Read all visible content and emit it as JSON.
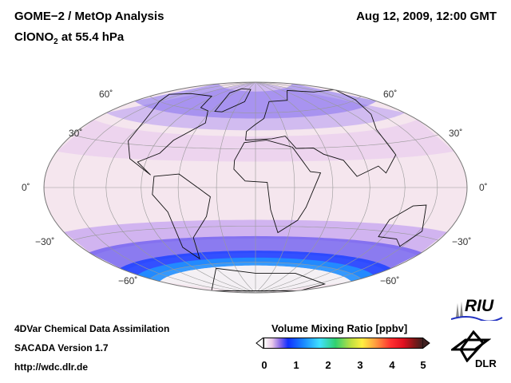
{
  "header": {
    "title": "GOME−2 / MetOp Analysis",
    "species": "ClONO",
    "species_sub": "2",
    "level": " at 55.4 hPa",
    "datetime": "Aug 12, 2009, 12:00 GMT"
  },
  "map": {
    "lat_labels_left": [
      "60˚",
      "30˚",
      "0˚",
      "−30˚",
      "−60˚"
    ],
    "lat_labels_right": [
      "60˚",
      "30˚",
      "0˚",
      "−30˚",
      "−60˚"
    ]
  },
  "footer": {
    "line1": "4DVar Chemical Data Assimilation",
    "line2": "SACADA Version 1.7",
    "line3": "http://wdc.dlr.de"
  },
  "colorbar": {
    "title": "Volume Mixing Ratio [ppbv]",
    "ticks": [
      "0",
      "1",
      "2",
      "3",
      "4",
      "5"
    ],
    "range": [
      0,
      5
    ]
  },
  "logos": {
    "riu": "RIU",
    "dlr": "DLR"
  }
}
